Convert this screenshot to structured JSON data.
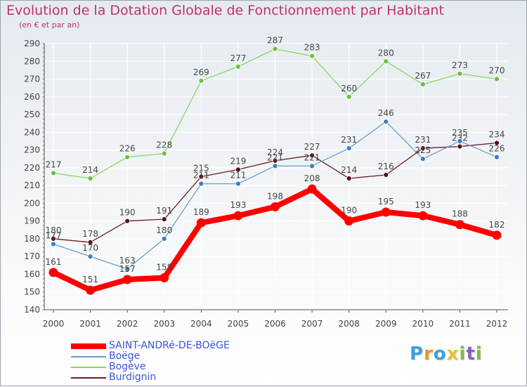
{
  "title": "Evolution de la Dotation Globale de Fonctionnement par Habitant",
  "subtitle": "(en € et par an)",
  "logo": {
    "letters": [
      "P",
      "r",
      "o",
      "x",
      "i",
      "t",
      "i"
    ],
    "colors": [
      "#3da1d8",
      "#f0932b",
      "#3da1d8",
      "#e8c02c",
      "#7cbb3a",
      "#8e5bc2",
      "#7cbb3a"
    ]
  },
  "chart_data": {
    "type": "line",
    "title": "Evolution de la Dotation Globale de Fonctionnement par Habitant",
    "subtitle": "(en € et par an)",
    "x": [
      "2000",
      "2001",
      "2002",
      "2003",
      "2004",
      "2005",
      "2006",
      "2007",
      "2008",
      "2009",
      "2010",
      "2011",
      "2012"
    ],
    "ylim": [
      140,
      290
    ],
    "yticks": [
      140,
      150,
      160,
      170,
      180,
      190,
      200,
      210,
      220,
      230,
      240,
      250,
      260,
      270,
      280,
      290
    ],
    "grid": true,
    "legend_position": "bottom-left",
    "series": [
      {
        "name": "SAINT-ANDRé-DE-BOëGE",
        "color": "#ff0000",
        "values": [
          161,
          151,
          157,
          158,
          189,
          193,
          198,
          208,
          190,
          195,
          193,
          188,
          182
        ]
      },
      {
        "name": "Boëge",
        "color": "#6a9fd0",
        "values": [
          177,
          170,
          163,
          180,
          211,
          211,
          221,
          221,
          231,
          246,
          225,
          235,
          226
        ]
      },
      {
        "name": "Bogève",
        "color": "#88d860",
        "values": [
          217,
          214,
          226,
          228,
          269,
          277,
          287,
          283,
          260,
          280,
          267,
          273,
          270
        ]
      },
      {
        "name": "Burdignin",
        "color": "#6b1c22",
        "values": [
          180,
          178,
          190,
          191,
          215,
          219,
          224,
          227,
          214,
          216,
          231,
          232,
          234
        ]
      }
    ]
  }
}
